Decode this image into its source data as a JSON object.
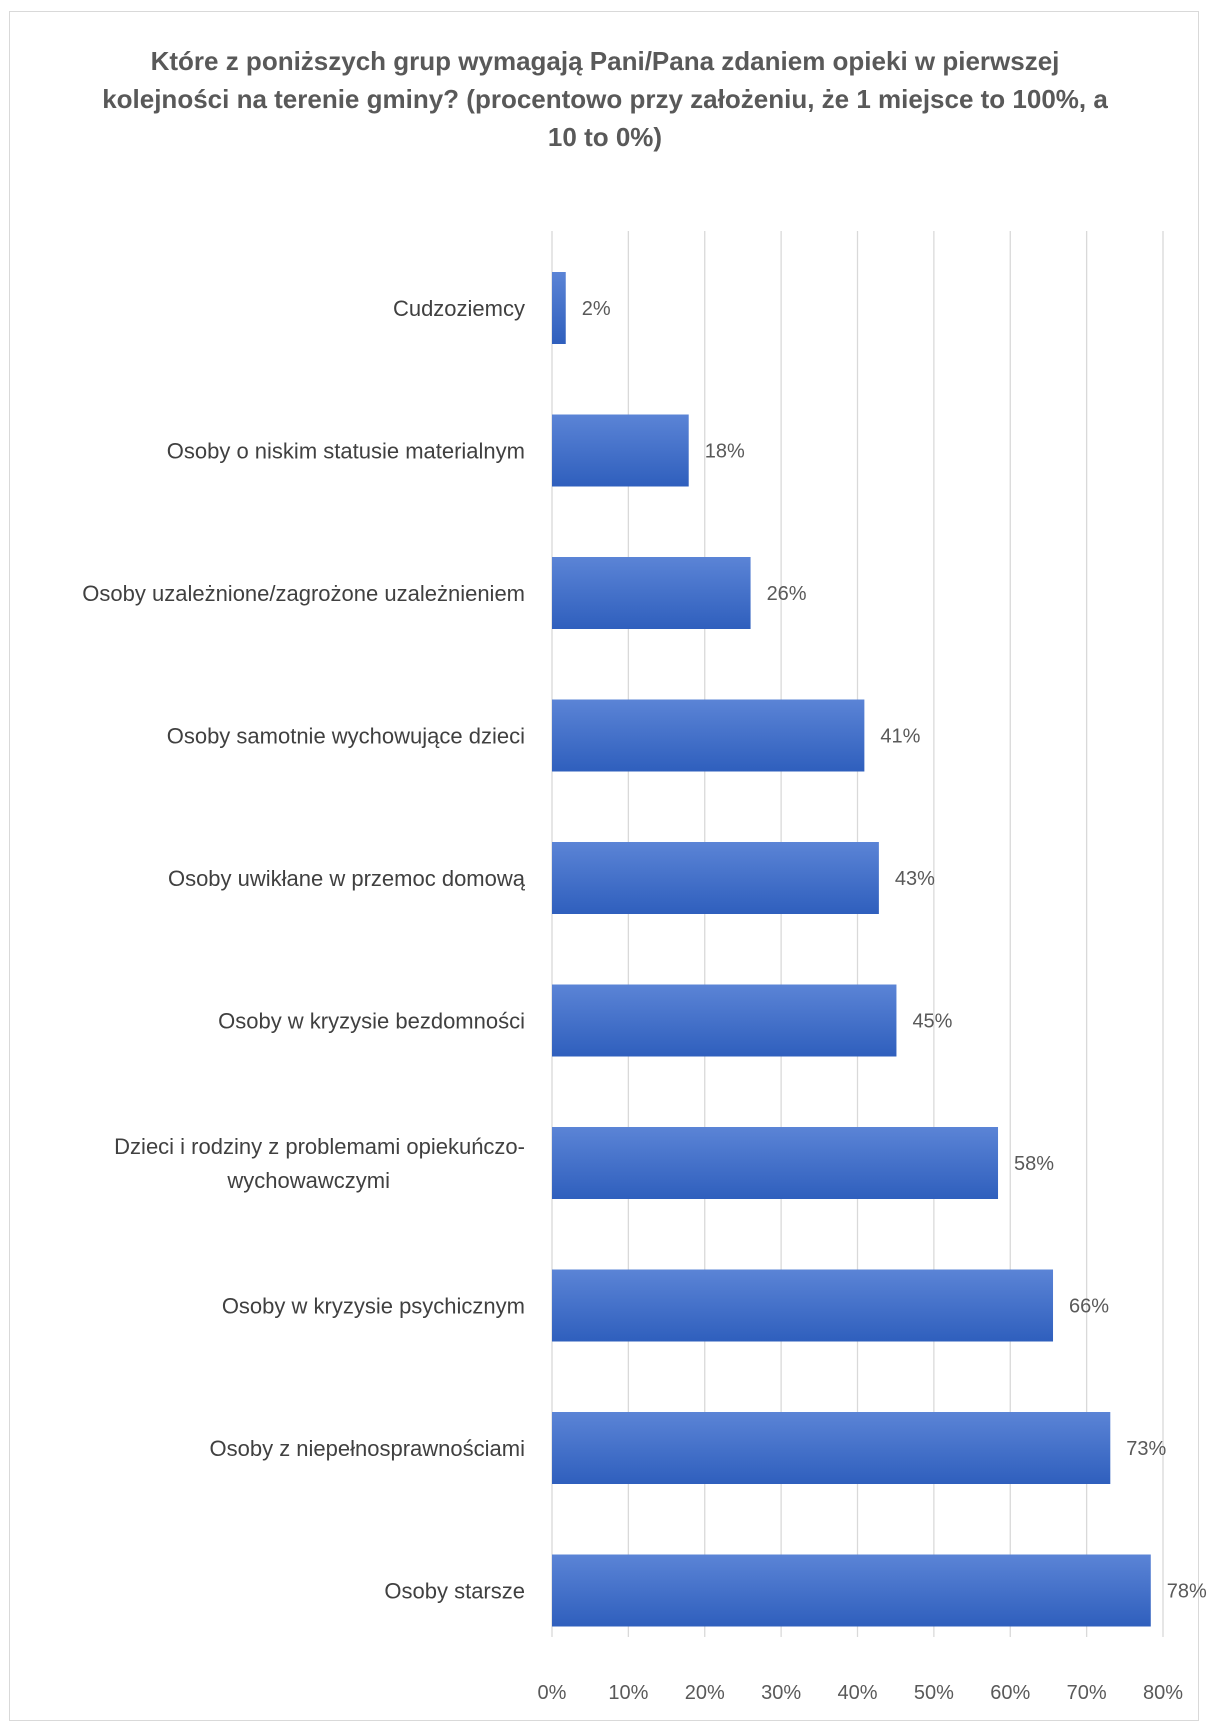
{
  "chart_data": {
    "type": "bar",
    "orientation": "horizontal",
    "title": "Które z poniższych grup wymagają Pani/Pana zdaniem opieki w pierwszej kolejności na terenie gminy? (procentowo przy założeniu, że 1 miejsce to 100%, a 10 to 0%)",
    "xlabel": "",
    "ylabel": "",
    "categories": [
      "Cudzoziemcy",
      "Osoby o niskim statusie materialnym",
      "Osoby uzależnione/zagrożone uzależnieniem",
      "Osoby samotnie wychowujące dzieci",
      "Osoby uwikłane w przemoc domową",
      "Osoby w kryzysie bezdomności",
      "Dzieci i rodziny z problemami opiekuńczo-wychowawczymi",
      "Osoby w kryzysie psychicznym",
      "Osoby z niepełnosprawnościami",
      "Osoby starsze"
    ],
    "category_label_lines": [
      [
        "Cudzoziemcy"
      ],
      [
        "Osoby o niskim statusie materialnym"
      ],
      [
        "Osoby uzależnione/zagrożone uzależnieniem"
      ],
      [
        "Osoby samotnie wychowujące dzieci"
      ],
      [
        "Osoby uwikłane w przemoc domową"
      ],
      [
        "Osoby w kryzysie bezdomności"
      ],
      [
        "Dzieci i rodziny z problemami opiekuńczo-",
        "wychowawczymi"
      ],
      [
        "Osoby w kryzysie psychicznym"
      ],
      [
        "Osoby z niepełnosprawnościami"
      ],
      [
        "Osoby starsze"
      ]
    ],
    "values": [
      1.8,
      17.9,
      26.0,
      40.9,
      42.8,
      45.1,
      58.4,
      65.6,
      73.1,
      78.4
    ],
    "data_labels": [
      "2%",
      "18%",
      "26%",
      "41%",
      "43%",
      "45%",
      "58%",
      "66%",
      "73%",
      "78%"
    ],
    "xlim": [
      0,
      80
    ],
    "xticks": [
      0,
      10,
      20,
      30,
      40,
      50,
      60,
      70,
      80
    ],
    "xtick_labels": [
      "0%",
      "10%",
      "20%",
      "30%",
      "40%",
      "50%",
      "60%",
      "70%",
      "80%"
    ],
    "grid": true,
    "legend": "none",
    "colors": {
      "bar_top": "#5b84d6",
      "bar_bottom": "#2f5fbd",
      "grid": "#d9d9d9",
      "text": "#595959",
      "category_text": "#404040"
    }
  }
}
